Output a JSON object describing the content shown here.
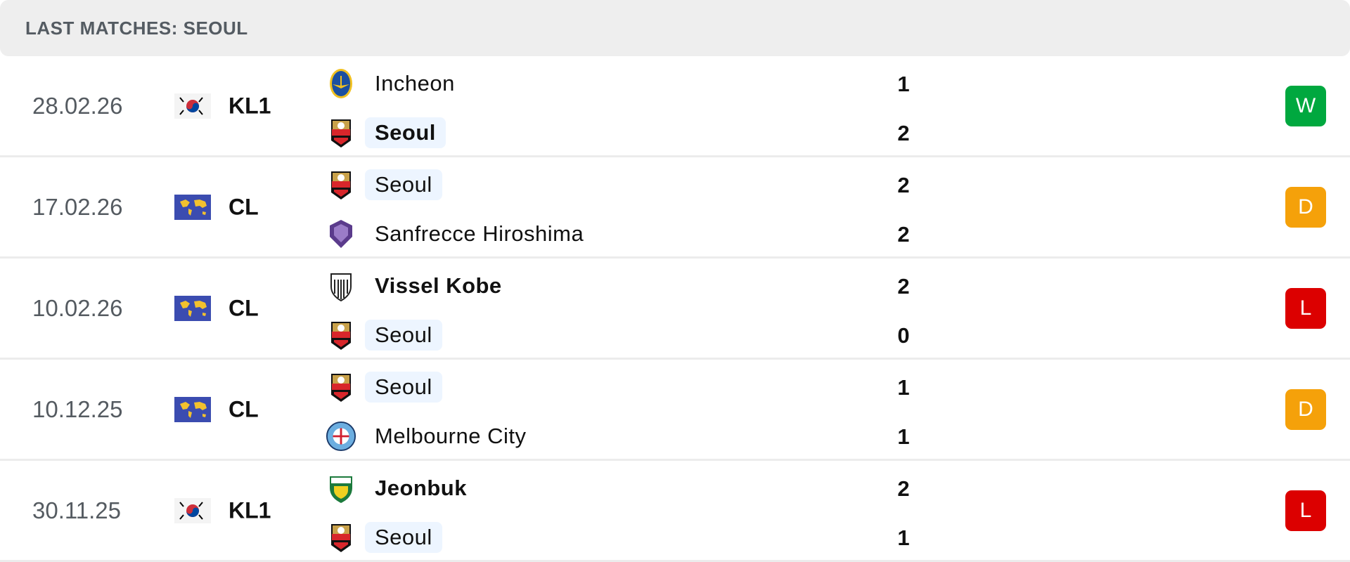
{
  "header": {
    "title": "LAST MATCHES: SEOUL"
  },
  "colors": {
    "win": "#00a83f",
    "draw": "#f5a10a",
    "loss": "#dc0000",
    "highlight": "#edf5ff"
  },
  "matches": [
    {
      "date": "28.02.26",
      "league": "KL1",
      "flag": "south-korea-flag",
      "home": "Incheon",
      "away": "Seoul",
      "home_score": "1",
      "away_score": "2",
      "result": "W",
      "winner": "away",
      "home_logo": "incheon-crest-icon",
      "away_logo": "seoul-crest-icon"
    },
    {
      "date": "17.02.26",
      "league": "CL",
      "flag": "world-flag",
      "home": "Seoul",
      "away": "Sanfrecce Hiroshima",
      "home_score": "2",
      "away_score": "2",
      "result": "D",
      "winner": "none",
      "home_logo": "seoul-crest-icon",
      "away_logo": "hiroshima-crest-icon"
    },
    {
      "date": "10.02.26",
      "league": "CL",
      "flag": "world-flag",
      "home": "Vissel Kobe",
      "away": "Seoul",
      "home_score": "2",
      "away_score": "0",
      "result": "L",
      "winner": "home",
      "home_logo": "vissel-kobe-crest-icon",
      "away_logo": "seoul-crest-icon"
    },
    {
      "date": "10.12.25",
      "league": "CL",
      "flag": "world-flag",
      "home": "Seoul",
      "away": "Melbourne City",
      "home_score": "1",
      "away_score": "1",
      "result": "D",
      "winner": "none",
      "home_logo": "seoul-crest-icon",
      "away_logo": "melbourne-city-crest-icon"
    },
    {
      "date": "30.11.25",
      "league": "KL1",
      "flag": "south-korea-flag",
      "home": "Jeonbuk",
      "away": "Seoul",
      "home_score": "2",
      "away_score": "1",
      "result": "L",
      "winner": "home",
      "home_logo": "jeonbuk-crest-icon",
      "away_logo": "seoul-crest-icon"
    }
  ]
}
